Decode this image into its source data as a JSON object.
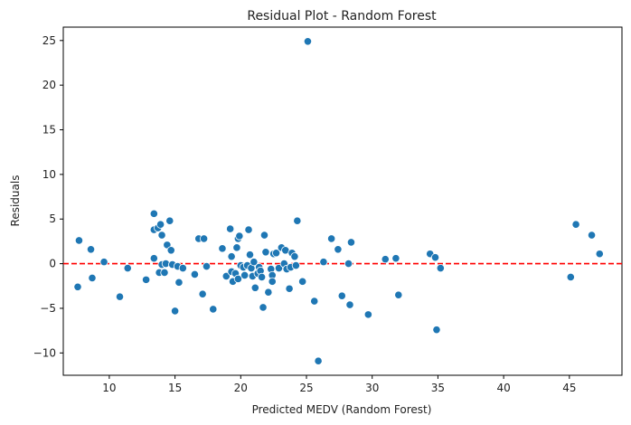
{
  "chart_data": {
    "type": "scatter",
    "title": "Residual Plot - Random Forest",
    "xlabel": "Predicted MEDV (Random Forest)",
    "ylabel": "Residuals",
    "xlim": [
      6.5,
      49.0
    ],
    "ylim": [
      -12.5,
      26.5
    ],
    "xticks": [
      10,
      15,
      20,
      25,
      30,
      35,
      40,
      45
    ],
    "xtick_labels": [
      "10",
      "15",
      "20",
      "25",
      "30",
      "35",
      "40",
      "45"
    ],
    "yticks": [
      -10,
      -5,
      0,
      5,
      10,
      15,
      20,
      25
    ],
    "ytick_labels": [
      "−10",
      "−5",
      "0",
      "5",
      "10",
      "15",
      "20",
      "25"
    ],
    "reference_line": {
      "y": 0,
      "color": "#ff0000",
      "style": "dashed"
    },
    "marker_color": "#1f77b4",
    "grid": false,
    "points": [
      {
        "x": 7.7,
        "y": 2.6
      },
      {
        "x": 7.6,
        "y": -2.6
      },
      {
        "x": 8.6,
        "y": 1.6
      },
      {
        "x": 8.7,
        "y": -1.6
      },
      {
        "x": 9.6,
        "y": 0.2
      },
      {
        "x": 10.8,
        "y": -3.7
      },
      {
        "x": 11.4,
        "y": -0.5
      },
      {
        "x": 12.8,
        "y": -1.8
      },
      {
        "x": 13.4,
        "y": 5.6
      },
      {
        "x": 13.4,
        "y": 3.8
      },
      {
        "x": 13.4,
        "y": 0.6
      },
      {
        "x": 13.7,
        "y": 4.0
      },
      {
        "x": 13.8,
        "y": -1.0
      },
      {
        "x": 13.9,
        "y": 4.4
      },
      {
        "x": 14.0,
        "y": 3.2
      },
      {
        "x": 14.0,
        "y": -0.1
      },
      {
        "x": 14.2,
        "y": -1.0
      },
      {
        "x": 14.3,
        "y": 0.0
      },
      {
        "x": 14.4,
        "y": 2.1
      },
      {
        "x": 14.6,
        "y": 4.8
      },
      {
        "x": 14.7,
        "y": 1.5
      },
      {
        "x": 14.8,
        "y": -0.1
      },
      {
        "x": 15.0,
        "y": -5.3
      },
      {
        "x": 15.2,
        "y": -0.3
      },
      {
        "x": 15.3,
        "y": -2.1
      },
      {
        "x": 15.6,
        "y": -0.5
      },
      {
        "x": 16.5,
        "y": -1.2
      },
      {
        "x": 16.8,
        "y": 2.8
      },
      {
        "x": 17.1,
        "y": -3.4
      },
      {
        "x": 17.2,
        "y": 2.8
      },
      {
        "x": 17.4,
        "y": -0.3
      },
      {
        "x": 17.9,
        "y": -5.1
      },
      {
        "x": 18.6,
        "y": 1.7
      },
      {
        "x": 18.9,
        "y": -1.4
      },
      {
        "x": 19.2,
        "y": 3.9
      },
      {
        "x": 19.3,
        "y": 0.8
      },
      {
        "x": 19.3,
        "y": -0.9
      },
      {
        "x": 19.4,
        "y": -2.0
      },
      {
        "x": 19.6,
        "y": -1.1
      },
      {
        "x": 19.7,
        "y": 1.8
      },
      {
        "x": 19.8,
        "y": -1.7
      },
      {
        "x": 19.8,
        "y": 2.8
      },
      {
        "x": 19.9,
        "y": 3.1
      },
      {
        "x": 20.0,
        "y": -0.2
      },
      {
        "x": 20.2,
        "y": -0.4
      },
      {
        "x": 20.3,
        "y": -1.3
      },
      {
        "x": 20.5,
        "y": -0.2
      },
      {
        "x": 20.6,
        "y": 3.8
      },
      {
        "x": 20.7,
        "y": 1.0
      },
      {
        "x": 20.8,
        "y": -0.5
      },
      {
        "x": 20.9,
        "y": -1.4
      },
      {
        "x": 21.0,
        "y": 0.2
      },
      {
        "x": 21.1,
        "y": -2.7
      },
      {
        "x": 21.3,
        "y": -1.1
      },
      {
        "x": 21.4,
        "y": -0.4
      },
      {
        "x": 21.5,
        "y": -0.8
      },
      {
        "x": 21.6,
        "y": -1.5
      },
      {
        "x": 21.7,
        "y": -4.9
      },
      {
        "x": 21.8,
        "y": 3.2
      },
      {
        "x": 21.9,
        "y": 1.3
      },
      {
        "x": 22.1,
        "y": -3.2
      },
      {
        "x": 22.3,
        "y": -0.6
      },
      {
        "x": 22.4,
        "y": -1.3
      },
      {
        "x": 22.4,
        "y": -2.0
      },
      {
        "x": 22.5,
        "y": 1.1
      },
      {
        "x": 22.7,
        "y": 1.2
      },
      {
        "x": 22.9,
        "y": -0.5
      },
      {
        "x": 23.1,
        "y": 1.8
      },
      {
        "x": 23.3,
        "y": 0.0
      },
      {
        "x": 23.4,
        "y": 1.5
      },
      {
        "x": 23.5,
        "y": -0.6
      },
      {
        "x": 23.7,
        "y": -2.8
      },
      {
        "x": 23.8,
        "y": -0.4
      },
      {
        "x": 23.9,
        "y": 1.2
      },
      {
        "x": 24.1,
        "y": 0.8
      },
      {
        "x": 24.2,
        "y": -0.2
      },
      {
        "x": 24.3,
        "y": 4.8
      },
      {
        "x": 24.7,
        "y": -2.0
      },
      {
        "x": 25.1,
        "y": 24.9
      },
      {
        "x": 25.6,
        "y": -4.2
      },
      {
        "x": 25.9,
        "y": -10.9
      },
      {
        "x": 26.3,
        "y": 0.2
      },
      {
        "x": 26.9,
        "y": 2.8
      },
      {
        "x": 27.4,
        "y": 1.6
      },
      {
        "x": 27.7,
        "y": -3.6
      },
      {
        "x": 28.2,
        "y": 0.0
      },
      {
        "x": 28.3,
        "y": -4.6
      },
      {
        "x": 28.4,
        "y": 2.4
      },
      {
        "x": 29.7,
        "y": -5.7
      },
      {
        "x": 31.0,
        "y": 0.5
      },
      {
        "x": 31.8,
        "y": 0.6
      },
      {
        "x": 32.0,
        "y": -3.5
      },
      {
        "x": 34.4,
        "y": 1.1
      },
      {
        "x": 34.8,
        "y": 0.7
      },
      {
        "x": 34.9,
        "y": -7.4
      },
      {
        "x": 35.2,
        "y": -0.5
      },
      {
        "x": 45.1,
        "y": -1.5
      },
      {
        "x": 45.5,
        "y": 4.4
      },
      {
        "x": 46.7,
        "y": 3.2
      },
      {
        "x": 47.3,
        "y": 1.1
      }
    ]
  }
}
